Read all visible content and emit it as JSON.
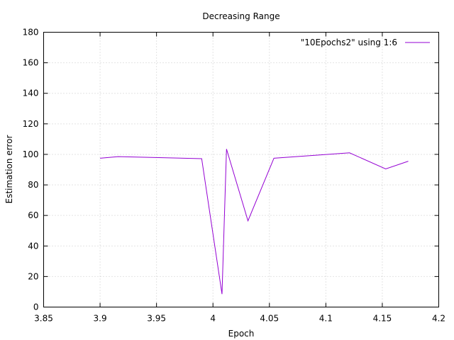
{
  "chart_data": {
    "type": "line",
    "title": "Decreasing Range",
    "xlabel": "Epoch",
    "ylabel": "Estimation error",
    "xlim": [
      3.85,
      4.2
    ],
    "ylim": [
      0,
      180
    ],
    "xticks": [
      3.85,
      3.9,
      3.95,
      4.0,
      4.05,
      4.1,
      4.15,
      4.2
    ],
    "xtick_labels": [
      "3.85",
      "3.9",
      "3.95",
      "4",
      "4.05",
      "4.1",
      "4.15",
      "4.2"
    ],
    "yticks": [
      0,
      20,
      40,
      60,
      80,
      100,
      120,
      140,
      160,
      180
    ],
    "ytick_labels": [
      "0",
      "20",
      "40",
      "60",
      "80",
      "100",
      "120",
      "140",
      "160",
      "180"
    ],
    "grid": true,
    "legend_position": "top-right",
    "series": [
      {
        "name": "\"10Epochs2\" using 1:6",
        "color": "#9400d3",
        "x": [
          3.9,
          3.916,
          3.99,
          4.008,
          4.012,
          4.031,
          4.054,
          4.121,
          4.153,
          4.173
        ],
        "y": [
          97.5,
          98.5,
          97.2,
          8.5,
          103.5,
          56.5,
          97.5,
          101.0,
          90.5,
          95.5
        ]
      }
    ]
  }
}
